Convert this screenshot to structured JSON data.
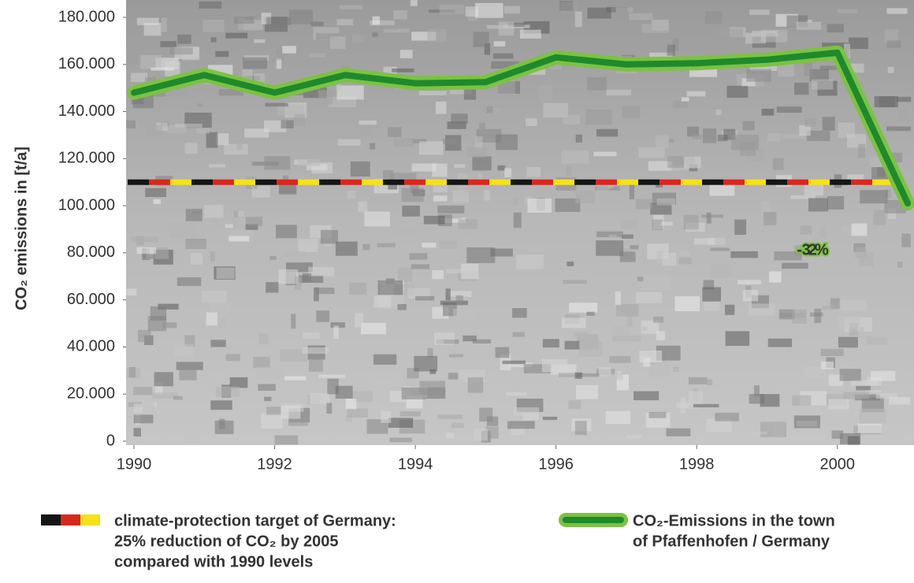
{
  "chart_data": {
    "type": "line",
    "y_label": "CO₂ emissions in [t/a]",
    "x": [
      1990,
      1991,
      1992,
      1993,
      1994,
      1995,
      1996,
      1997,
      1998,
      1999,
      2000,
      2001
    ],
    "xlim": [
      1990,
      2001
    ],
    "xticks": [
      1990,
      1992,
      1994,
      1996,
      1998,
      2000
    ],
    "ylim": [
      0,
      180000
    ],
    "yticks": [
      0,
      {
        "value": 20000,
        "label": "20.000"
      },
      {
        "value": 40000,
        "label": "40.000"
      },
      {
        "value": 60000,
        "label": "60.000"
      },
      {
        "value": 80000,
        "label": "80.000"
      },
      {
        "value": 100000,
        "label": "100.000"
      },
      {
        "value": 120000,
        "label": "120.000"
      },
      {
        "value": 140000,
        "label": "140.000"
      },
      {
        "value": 160000,
        "label": "160.000"
      },
      {
        "value": 180000,
        "label": "180.000"
      }
    ],
    "series": [
      {
        "name": [
          "CO₂-Emissions in the town",
          "of Pfaffenhofen / Germany"
        ],
        "color": "#1e8a2c",
        "outline_color": "#7cc242",
        "values": [
          148000,
          155500,
          148000,
          155500,
          152000,
          152500,
          163000,
          160000,
          160500,
          162000,
          165000,
          101000
        ]
      }
    ],
    "reference_line": {
      "name": [
        "climate-protection target of Germany:",
        "25% reduction of CO₂ by 2005",
        "compared with 1990 levels"
      ],
      "value": 110000,
      "colors": [
        "#151515",
        "#d8281c",
        "#f4e21a"
      ],
      "text_color": "#d8281c"
    },
    "annotation": "- 32%"
  }
}
